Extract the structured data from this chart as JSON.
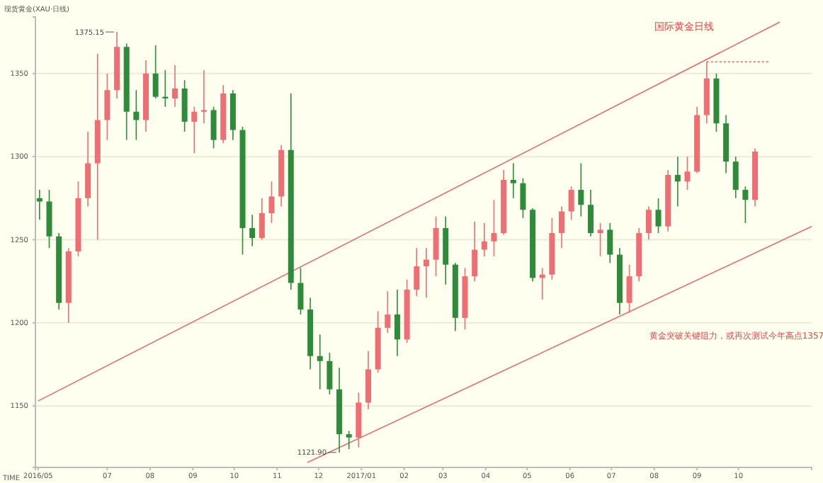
{
  "chart_data": {
    "type": "candlestick",
    "title": "现货黄金(XAU·日线)",
    "subtitle": "国际黄金日线",
    "xlabel": "TIME",
    "xlim": [
      "2016-05-10",
      "2017-11-23"
    ],
    "ylim": [
      1113,
      1384
    ],
    "yticks": [
      1150,
      1200,
      1250,
      1300,
      1350
    ],
    "xticks": [
      {
        "value": "2016-05-12",
        "label": "2016/05"
      },
      {
        "value": "2016-07-01",
        "label": "07"
      },
      {
        "value": "2016-08-01",
        "label": "08"
      },
      {
        "value": "2016-09-01",
        "label": "09"
      },
      {
        "value": "2016-10-01",
        "label": "10"
      },
      {
        "value": "2016-11-01",
        "label": "11"
      },
      {
        "value": "2016-12-01",
        "label": "12"
      },
      {
        "value": "2017-01-01",
        "label": "2017/01"
      },
      {
        "value": "2017-02-01",
        "label": "02"
      },
      {
        "value": "2017-03-01",
        "label": "03"
      },
      {
        "value": "2017-04-01",
        "label": "04"
      },
      {
        "value": "2017-05-01",
        "label": "05"
      },
      {
        "value": "2017-06-01",
        "label": "06"
      },
      {
        "value": "2017-07-01",
        "label": "07"
      },
      {
        "value": "2017-08-01",
        "label": "08"
      },
      {
        "value": "2017-09-01",
        "label": "09"
      },
      {
        "value": "2017-10-01",
        "label": "10"
      }
    ],
    "grid": "y",
    "x": [
      "2016-05-13",
      "2016-05-20",
      "2016-05-27",
      "2016-06-03",
      "2016-06-10",
      "2016-06-17",
      "2016-06-24",
      "2016-07-01",
      "2016-07-08",
      "2016-07-15",
      "2016-07-22",
      "2016-07-29",
      "2016-08-05",
      "2016-08-12",
      "2016-08-19",
      "2016-08-26",
      "2016-09-02",
      "2016-09-09",
      "2016-09-16",
      "2016-09-23",
      "2016-09-30",
      "2016-10-07",
      "2016-10-14",
      "2016-10-21",
      "2016-10-28",
      "2016-11-04",
      "2016-11-11",
      "2016-11-18",
      "2016-11-25",
      "2016-12-02",
      "2016-12-09",
      "2016-12-16",
      "2016-12-23",
      "2016-12-30",
      "2017-01-06",
      "2017-01-13",
      "2017-01-20",
      "2017-01-27",
      "2017-02-03",
      "2017-02-10",
      "2017-02-17",
      "2017-02-24",
      "2017-03-03",
      "2017-03-10",
      "2017-03-17",
      "2017-03-24",
      "2017-03-31",
      "2017-04-07",
      "2017-04-14",
      "2017-04-21",
      "2017-04-28",
      "2017-05-05",
      "2017-05-12",
      "2017-05-19",
      "2017-05-26",
      "2017-06-02",
      "2017-06-09",
      "2017-06-16",
      "2017-06-23",
      "2017-06-30",
      "2017-07-07",
      "2017-07-14",
      "2017-07-21",
      "2017-07-28",
      "2017-08-04",
      "2017-08-11",
      "2017-08-18",
      "2017-08-25",
      "2017-09-01",
      "2017-09-08",
      "2017-09-15",
      "2017-09-22",
      "2017-09-29",
      "2017-10-06",
      "2017-10-13"
    ],
    "ohlc": [
      [
        1275,
        1280,
        1262,
        1273
      ],
      [
        1273,
        1280,
        1245,
        1252
      ],
      [
        1252,
        1254,
        1208,
        1212
      ],
      [
        1212,
        1245,
        1200,
        1243
      ],
      [
        1243,
        1285,
        1240,
        1275
      ],
      [
        1275,
        1315,
        1270,
        1296
      ],
      [
        1296,
        1362,
        1250,
        1322
      ],
      [
        1322,
        1350,
        1310,
        1340
      ],
      [
        1340,
        1375,
        1335,
        1366
      ],
      [
        1366,
        1368,
        1310,
        1327
      ],
      [
        1327,
        1340,
        1310,
        1322
      ],
      [
        1322,
        1358,
        1315,
        1350
      ],
      [
        1350,
        1367,
        1335,
        1336
      ],
      [
        1336,
        1352,
        1330,
        1335
      ],
      [
        1335,
        1355,
        1330,
        1341
      ],
      [
        1341,
        1346,
        1315,
        1321
      ],
      [
        1321,
        1330,
        1302,
        1327
      ],
      [
        1327,
        1352,
        1320,
        1328
      ],
      [
        1328,
        1330,
        1305,
        1310
      ],
      [
        1310,
        1343,
        1308,
        1338
      ],
      [
        1338,
        1340,
        1310,
        1316
      ],
      [
        1316,
        1318,
        1241,
        1257
      ],
      [
        1257,
        1265,
        1246,
        1251
      ],
      [
        1251,
        1275,
        1250,
        1266
      ],
      [
        1266,
        1285,
        1260,
        1276
      ],
      [
        1276,
        1307,
        1270,
        1304
      ],
      [
        1304,
        1338,
        1220,
        1224
      ],
      [
        1224,
        1233,
        1205,
        1208
      ],
      [
        1208,
        1215,
        1172,
        1180
      ],
      [
        1180,
        1193,
        1160,
        1177
      ],
      [
        1177,
        1182,
        1157,
        1160
      ],
      [
        1160,
        1173,
        1122,
        1133
      ],
      [
        1133,
        1135,
        1124,
        1131
      ],
      [
        1131,
        1158,
        1125,
        1152
      ],
      [
        1152,
        1183,
        1148,
        1172
      ],
      [
        1172,
        1207,
        1170,
        1197
      ],
      [
        1197,
        1219,
        1194,
        1205
      ],
      [
        1205,
        1220,
        1180,
        1190
      ],
      [
        1190,
        1226,
        1188,
        1220
      ],
      [
        1220,
        1245,
        1216,
        1234
      ],
      [
        1234,
        1245,
        1215,
        1238
      ],
      [
        1238,
        1264,
        1228,
        1257
      ],
      [
        1257,
        1264,
        1223,
        1235
      ],
      [
        1235,
        1236,
        1195,
        1203
      ],
      [
        1203,
        1233,
        1196,
        1228
      ],
      [
        1228,
        1261,
        1225,
        1244
      ],
      [
        1244,
        1260,
        1240,
        1249
      ],
      [
        1249,
        1274,
        1240,
        1254
      ],
      [
        1254,
        1292,
        1253,
        1286
      ],
      [
        1286,
        1296,
        1275,
        1284
      ],
      [
        1284,
        1287,
        1263,
        1268
      ],
      [
        1268,
        1269,
        1225,
        1227
      ],
      [
        1227,
        1233,
        1214,
        1229
      ],
      [
        1229,
        1263,
        1226,
        1254
      ],
      [
        1254,
        1270,
        1245,
        1267
      ],
      [
        1267,
        1282,
        1262,
        1280
      ],
      [
        1280,
        1296,
        1264,
        1271
      ],
      [
        1271,
        1280,
        1252,
        1254
      ],
      [
        1254,
        1260,
        1240,
        1256
      ],
      [
        1256,
        1260,
        1236,
        1241
      ],
      [
        1241,
        1245,
        1205,
        1212
      ],
      [
        1212,
        1235,
        1206,
        1228
      ],
      [
        1228,
        1257,
        1225,
        1254
      ],
      [
        1254,
        1270,
        1250,
        1268
      ],
      [
        1268,
        1275,
        1254,
        1258
      ],
      [
        1258,
        1292,
        1255,
        1289
      ],
      [
        1289,
        1300,
        1270,
        1285
      ],
      [
        1285,
        1300,
        1280,
        1291
      ],
      [
        1291,
        1330,
        1290,
        1325
      ],
      [
        1325,
        1357,
        1320,
        1347
      ],
      [
        1347,
        1350,
        1315,
        1320
      ],
      [
        1320,
        1325,
        1290,
        1297
      ],
      [
        1297,
        1300,
        1275,
        1280
      ],
      [
        1280,
        1282,
        1260,
        1274
      ],
      [
        1274,
        1305,
        1270,
        1303
      ]
    ],
    "colors": [
      "#2e8b3a",
      "#2e8b3a",
      "#2e8b3a",
      "#ee6e73",
      "#ee6e73",
      "#ee6e73",
      "#ee6e73",
      "#ee6e73",
      "#ee6e73",
      "#2e8b3a",
      "#2e8b3a",
      "#ee6e73",
      "#2e8b3a",
      "#2e8b3a",
      "#ee6e73",
      "#2e8b3a",
      "#ee6e73",
      "#ee6e73",
      "#2e8b3a",
      "#ee6e73",
      "#2e8b3a",
      "#2e8b3a",
      "#2e8b3a",
      "#ee6e73",
      "#ee6e73",
      "#ee6e73",
      "#2e8b3a",
      "#2e8b3a",
      "#2e8b3a",
      "#2e8b3a",
      "#2e8b3a",
      "#2e8b3a",
      "#2e8b3a",
      "#ee6e73",
      "#ee6e73",
      "#ee6e73",
      "#ee6e73",
      "#2e8b3a",
      "#ee6e73",
      "#ee6e73",
      "#ee6e73",
      "#ee6e73",
      "#2e8b3a",
      "#2e8b3a",
      "#ee6e73",
      "#ee6e73",
      "#ee6e73",
      "#ee6e73",
      "#ee6e73",
      "#2e8b3a",
      "#2e8b3a",
      "#2e8b3a",
      "#ee6e73",
      "#ee6e73",
      "#ee6e73",
      "#ee6e73",
      "#2e8b3a",
      "#2e8b3a",
      "#ee6e73",
      "#2e8b3a",
      "#2e8b3a",
      "#ee6e73",
      "#ee6e73",
      "#ee6e73",
      "#2e8b3a",
      "#ee6e73",
      "#2e8b3a",
      "#ee6e73",
      "#ee6e73",
      "#ee6e73",
      "#2e8b3a",
      "#2e8b3a",
      "#2e8b3a",
      "#2e8b3a",
      "#ee6e73"
    ],
    "series": [
      {
        "type": "line",
        "color": "#e07070",
        "line_style": "solid",
        "x": [
          "2016-05-12",
          "2017-10-31"
        ],
        "values": [
          1153,
          1381
        ]
      },
      {
        "type": "line",
        "color": "#e07070",
        "line_style": "solid",
        "x": [
          "2016-11-23",
          "2017-11-23"
        ],
        "values": [
          1116,
          1258
        ]
      },
      {
        "type": "line",
        "color": "#e07070",
        "line_style": "dotted",
        "x": [
          "2017-09-08",
          "2017-10-24"
        ],
        "values": [
          1357,
          1357
        ]
      }
    ],
    "annotations": [
      "黄金突破关键阻力，或再次测试今年高点1357",
      {
        "text": "1375.15",
        "x": "2016-07-08",
        "y": 1375
      },
      {
        "text": "1121.90",
        "x": "2016-12-16",
        "y": 1122
      }
    ]
  }
}
